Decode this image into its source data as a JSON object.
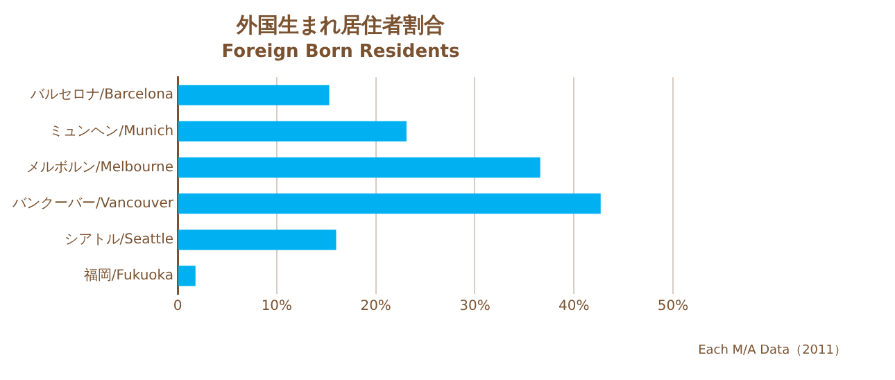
{
  "chart_data": {
    "type": "bar",
    "orientation": "horizontal",
    "title": "外国生まれ居住者割合",
    "subtitle": "Foreign Born Residents",
    "categories": [
      "バルセロナ/Barcelona",
      "ミュンヘン/Munich",
      "メルボルン/Melbourne",
      "バンクーバー/Vancouver",
      "シアトル/Seattle",
      "福岡/Fukuoka"
    ],
    "values": [
      15.3,
      23.1,
      36.6,
      42.7,
      16.0,
      1.8
    ],
    "color": "#00b0f0",
    "xlim": [
      0,
      50
    ],
    "xticks": [
      {
        "value": 0,
        "label": "0"
      },
      {
        "value": 10,
        "label": "10%"
      },
      {
        "value": 20,
        "label": "20%"
      },
      {
        "value": 30,
        "label": "30%"
      },
      {
        "value": 40,
        "label": "40%"
      },
      {
        "value": 50,
        "label": "50%"
      }
    ],
    "grid": "x",
    "legend": false,
    "annotations": [
      "Each M/A Data（2011）"
    ]
  }
}
